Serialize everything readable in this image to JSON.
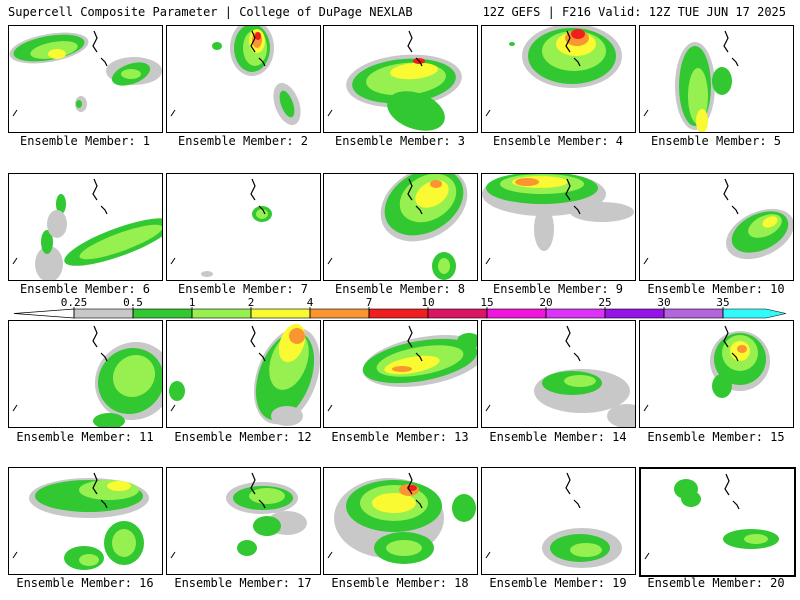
{
  "header": {
    "left": "Supercell Composite Parameter | College of DuPage NEXLAB",
    "right": "12Z GEFS | F216 Valid: 12Z TUE JUN 17 2025"
  },
  "legend": {
    "ticks": [
      "0.25",
      "0.5",
      "1",
      "2",
      "4",
      "7",
      "10",
      "15",
      "20",
      "25",
      "30",
      "35"
    ],
    "colors": [
      "#c8c8c8",
      "#32c832",
      "#96f050",
      "#fafa32",
      "#fa9632",
      "#f01e1e",
      "#dc1464",
      "#f014dc",
      "#dc32fa",
      "#9614e6",
      "#b464dc",
      "#32fafa"
    ]
  },
  "members": [
    {
      "label": "Ensemble Member: 1"
    },
    {
      "label": "Ensemble Member: 2"
    },
    {
      "label": "Ensemble Member: 3"
    },
    {
      "label": "Ensemble Member: 4"
    },
    {
      "label": "Ensemble Member: 5"
    },
    {
      "label": "Ensemble Member: 6"
    },
    {
      "label": "Ensemble Member: 7"
    },
    {
      "label": "Ensemble Member: 8"
    },
    {
      "label": "Ensemble Member: 9"
    },
    {
      "label": "Ensemble Member: 10"
    },
    {
      "label": "Ensemble Member: 11"
    },
    {
      "label": "Ensemble Member: 12"
    },
    {
      "label": "Ensemble Member: 13"
    },
    {
      "label": "Ensemble Member: 14"
    },
    {
      "label": "Ensemble Member: 15"
    },
    {
      "label": "Ensemble Member: 16"
    },
    {
      "label": "Ensemble Member: 17"
    },
    {
      "label": "Ensemble Member: 18"
    },
    {
      "label": "Ensemble Member: 19"
    },
    {
      "label": "Ensemble Member: 20"
    }
  ]
}
